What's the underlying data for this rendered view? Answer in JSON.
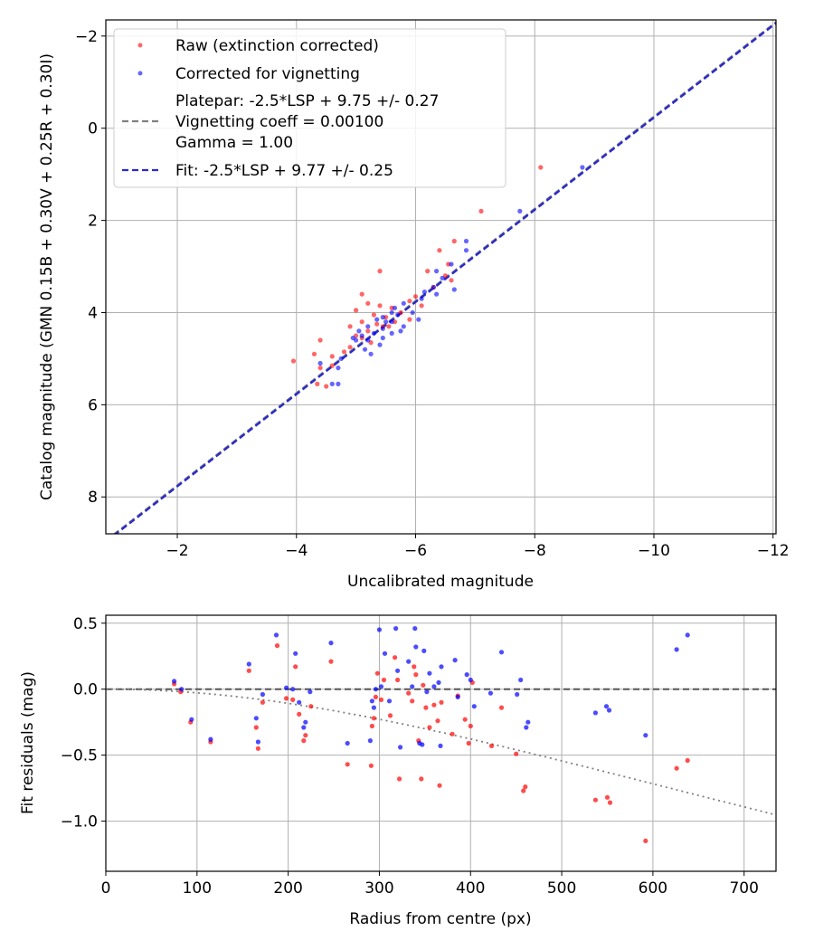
{
  "chart_data": [
    {
      "type": "scatter",
      "xlabel": "Uncalibrated magnitude",
      "ylabel": "Catalog magnitude (GMN 0.15B + 0.30V + 0.25R + 0.30I)",
      "xlim": [
        -0.8,
        -12.05
      ],
      "ylim": [
        8.8,
        -2.35
      ],
      "x_ticks": [
        -2,
        -4,
        -6,
        -8,
        -10,
        -12
      ],
      "x_tick_labels": [
        "−2",
        "−4",
        "−6",
        "−8",
        "−10",
        "−12"
      ],
      "y_ticks": [
        -2,
        0,
        2,
        4,
        6,
        8
      ],
      "y_tick_labels": [
        "−2",
        "0",
        "2",
        "4",
        "6",
        "8"
      ],
      "grid": true,
      "legend_position": "top-left",
      "legend": [
        {
          "label": "Raw (extinction corrected)",
          "marker": "dot",
          "color": "#ff0000"
        },
        {
          "label": "Corrected for vignetting",
          "marker": "dot",
          "color": "#0000ff"
        },
        {
          "label": "Platepar: -2.5*LSP + 9.75 +/- 0.27",
          "marker": "none",
          "color": "#808080"
        },
        {
          "label": "Vignetting coeff = 0.00100",
          "marker": "dashed",
          "color": "#808080"
        },
        {
          "label": "Gamma = 1.00",
          "marker": "none",
          "color": "#808080"
        },
        {
          "label": "Fit: -2.5*LSP + 9.77 +/- 0.25",
          "marker": "dashed",
          "color": "#0000cc"
        }
      ],
      "lines": [
        {
          "name": "Platepar",
          "slope": 1,
          "intercept": 9.75,
          "color": "#808080",
          "style": "dashed"
        },
        {
          "name": "Fit",
          "slope": 1,
          "intercept": 9.77,
          "color": "#2a2acc",
          "style": "dashed"
        }
      ],
      "series": [
        {
          "name": "Raw (extinction corrected)",
          "color": "#ff0000",
          "points": [
            [
              -8.1,
              0.85
            ],
            [
              -7.1,
              1.8
            ],
            [
              -6.65,
              2.45
            ],
            [
              -6.4,
              2.65
            ],
            [
              -6.55,
              2.95
            ],
            [
              -6.2,
              3.1
            ],
            [
              -5.4,
              3.1
            ],
            [
              -6.6,
              3.3
            ],
            [
              -5.1,
              3.6
            ],
            [
              -6.0,
              3.65
            ],
            [
              -5.9,
              3.75
            ],
            [
              -5.2,
              3.8
            ],
            [
              -5.4,
              3.85
            ],
            [
              -5.6,
              3.9
            ],
            [
              -5.0,
              3.95
            ],
            [
              -5.75,
              4.0
            ],
            [
              -5.3,
              4.05
            ],
            [
              -5.5,
              4.1
            ],
            [
              -5.9,
              4.15
            ],
            [
              -5.1,
              4.2
            ],
            [
              -4.9,
              4.3
            ],
            [
              -5.35,
              4.25
            ],
            [
              -5.55,
              4.3
            ],
            [
              -5.2,
              4.4
            ],
            [
              -5.0,
              4.5
            ],
            [
              -5.1,
              4.55
            ],
            [
              -4.4,
              4.6
            ],
            [
              -5.25,
              4.65
            ],
            [
              -4.9,
              4.75
            ],
            [
              -4.8,
              4.85
            ],
            [
              -4.3,
              4.9
            ],
            [
              -4.6,
              4.95
            ],
            [
              -3.95,
              5.05
            ],
            [
              -4.4,
              5.2
            ],
            [
              -4.6,
              5.15
            ],
            [
              -4.35,
              5.55
            ],
            [
              -4.5,
              5.6
            ],
            [
              -5.45,
              4.3
            ],
            [
              -5.65,
              4.2
            ],
            [
              -6.1,
              3.85
            ],
            [
              -6.3,
              3.45
            ],
            [
              -6.5,
              3.2
            ]
          ]
        },
        {
          "name": "Corrected for vignetting",
          "color": "#0000ff",
          "points": [
            [
              -8.8,
              0.85
            ],
            [
              -7.75,
              1.8
            ],
            [
              -6.85,
              2.45
            ],
            [
              -6.85,
              2.65
            ],
            [
              -6.6,
              2.95
            ],
            [
              -6.35,
              3.1
            ],
            [
              -6.45,
              3.25
            ],
            [
              -6.65,
              3.5
            ],
            [
              -6.35,
              3.6
            ],
            [
              -6.1,
              3.7
            ],
            [
              -5.8,
              3.8
            ],
            [
              -5.6,
              4.0
            ],
            [
              -5.7,
              4.05
            ],
            [
              -6.05,
              4.15
            ],
            [
              -5.45,
              4.1
            ],
            [
              -5.6,
              4.2
            ],
            [
              -5.2,
              4.3
            ],
            [
              -5.8,
              4.3
            ],
            [
              -5.45,
              4.35
            ],
            [
              -5.3,
              4.45
            ],
            [
              -5.6,
              4.45
            ],
            [
              -5.1,
              4.5
            ],
            [
              -5.45,
              4.55
            ],
            [
              -5.2,
              4.6
            ],
            [
              -5.0,
              4.6
            ],
            [
              -5.4,
              4.7
            ],
            [
              -5.15,
              4.8
            ],
            [
              -5.25,
              4.9
            ],
            [
              -4.75,
              5.0
            ],
            [
              -4.4,
              5.1
            ],
            [
              -4.7,
              5.2
            ],
            [
              -4.6,
              5.55
            ],
            [
              -4.7,
              5.55
            ],
            [
              -5.65,
              3.9
            ],
            [
              -5.5,
              4.2
            ],
            [
              -6.3,
              3.45
            ],
            [
              -5.95,
              4.0
            ],
            [
              -5.35,
              4.15
            ],
            [
              -5.05,
              4.4
            ],
            [
              -4.95,
              4.55
            ],
            [
              -5.75,
              4.4
            ],
            [
              -6.15,
              3.55
            ]
          ]
        }
      ]
    },
    {
      "type": "scatter",
      "xlabel": "Radius from centre (px)",
      "ylabel": "Fit residuals (mag)",
      "xlim": [
        0,
        735
      ],
      "ylim": [
        -1.38,
        0.56
      ],
      "x_ticks": [
        0,
        100,
        200,
        300,
        400,
        500,
        600,
        700
      ],
      "x_tick_labels": [
        "0",
        "100",
        "200",
        "300",
        "400",
        "500",
        "600",
        "700"
      ],
      "y_ticks": [
        0.5,
        0.0,
        -0.5,
        -1.0
      ],
      "y_tick_labels": [
        "0.5",
        "0.0",
        "−0.5",
        "−1.0"
      ],
      "grid": true,
      "lines": [
        {
          "name": "zero",
          "type": "hline",
          "y": 0,
          "color": "#555555",
          "style": "dashed"
        },
        {
          "name": "vignetting curve",
          "type": "curve",
          "coeff": 0.001,
          "color": "#808080",
          "style": "dotted"
        }
      ],
      "series": [
        {
          "name": "Raw (extinction corrected)",
          "color": "#ff0000",
          "points": [
            [
              75,
              0.04
            ],
            [
              82,
              -0.02
            ],
            [
              93,
              -0.25
            ],
            [
              115,
              -0.4
            ],
            [
              157,
              0.14
            ],
            [
              165,
              -0.29
            ],
            [
              167,
              -0.45
            ],
            [
              172,
              -0.1
            ],
            [
              188,
              0.33
            ],
            [
              198,
              -0.07
            ],
            [
              205,
              -0.08
            ],
            [
              208,
              0.17
            ],
            [
              212,
              -0.19
            ],
            [
              217,
              -0.39
            ],
            [
              219,
              -0.35
            ],
            [
              225,
              -0.13
            ],
            [
              247,
              0.21
            ],
            [
              265,
              -0.57
            ],
            [
              291,
              -0.58
            ],
            [
              292,
              -0.28
            ],
            [
              294,
              -0.22
            ],
            [
              296,
              -0.06
            ],
            [
              298,
              0.12
            ],
            [
              302,
              -0.08
            ],
            [
              305,
              0.07
            ],
            [
              312,
              -0.2
            ],
            [
              317,
              0.24
            ],
            [
              320,
              0.07
            ],
            [
              322,
              -0.68
            ],
            [
              332,
              -0.03
            ],
            [
              336,
              -0.09
            ],
            [
              338,
              0.17
            ],
            [
              340,
              0.11
            ],
            [
              343,
              -0.39
            ],
            [
              346,
              -0.68
            ],
            [
              348,
              0.03
            ],
            [
              351,
              -0.14
            ],
            [
              355,
              -0.29
            ],
            [
              360,
              -0.12
            ],
            [
              364,
              -0.24
            ],
            [
              366,
              -0.73
            ],
            [
              368,
              -0.1
            ],
            [
              380,
              -0.34
            ],
            [
              386,
              -0.05
            ],
            [
              394,
              -0.23
            ],
            [
              398,
              -0.41
            ],
            [
              400,
              -0.28
            ],
            [
              402,
              0.05
            ],
            [
              423,
              -0.43
            ],
            [
              434,
              -0.14
            ],
            [
              450,
              -0.49
            ],
            [
              458,
              -0.77
            ],
            [
              460,
              -0.74
            ],
            [
              537,
              -0.84
            ],
            [
              550,
              -0.82
            ],
            [
              553,
              -0.86
            ],
            [
              592,
              -1.15
            ],
            [
              626,
              -0.6
            ],
            [
              638,
              -0.54
            ]
          ]
        },
        {
          "name": "Corrected for vignetting",
          "color": "#0000ff",
          "points": [
            [
              75,
              0.06
            ],
            [
              83,
              0.0
            ],
            [
              94,
              -0.23
            ],
            [
              115,
              -0.38
            ],
            [
              157,
              0.19
            ],
            [
              165,
              -0.22
            ],
            [
              167,
              -0.4
            ],
            [
              172,
              -0.04
            ],
            [
              187,
              0.41
            ],
            [
              198,
              0.01
            ],
            [
              205,
              0.0
            ],
            [
              208,
              0.27
            ],
            [
              212,
              -0.1
            ],
            [
              217,
              -0.29
            ],
            [
              219,
              -0.25
            ],
            [
              224,
              -0.02
            ],
            [
              247,
              0.35
            ],
            [
              265,
              -0.41
            ],
            [
              290,
              -0.39
            ],
            [
              292,
              -0.09
            ],
            [
              294,
              -0.14
            ],
            [
              296,
              0.0
            ],
            [
              300,
              0.45
            ],
            [
              302,
              0.02
            ],
            [
              306,
              0.27
            ],
            [
              311,
              -0.09
            ],
            [
              318,
              0.46
            ],
            [
              320,
              0.14
            ],
            [
              323,
              -0.44
            ],
            [
              332,
              0.21
            ],
            [
              336,
              0.02
            ],
            [
              339,
              0.46
            ],
            [
              340,
              0.32
            ],
            [
              344,
              -0.41
            ],
            [
              347,
              -0.42
            ],
            [
              349,
              0.29
            ],
            [
              352,
              -0.02
            ],
            [
              355,
              0.12
            ],
            [
              360,
              0.02
            ],
            [
              365,
              0.05
            ],
            [
              367,
              -0.43
            ],
            [
              368,
              0.17
            ],
            [
              383,
              0.22
            ],
            [
              386,
              -0.06
            ],
            [
              396,
              0.11
            ],
            [
              400,
              0.07
            ],
            [
              404,
              -0.13
            ],
            [
              422,
              -0.03
            ],
            [
              434,
              0.28
            ],
            [
              451,
              -0.04
            ],
            [
              455,
              0.07
            ],
            [
              461,
              -0.29
            ],
            [
              463,
              -0.25
            ],
            [
              537,
              -0.18
            ],
            [
              549,
              -0.13
            ],
            [
              552,
              -0.16
            ],
            [
              592,
              -0.35
            ],
            [
              626,
              0.3
            ],
            [
              638,
              0.41
            ]
          ]
        }
      ]
    }
  ]
}
